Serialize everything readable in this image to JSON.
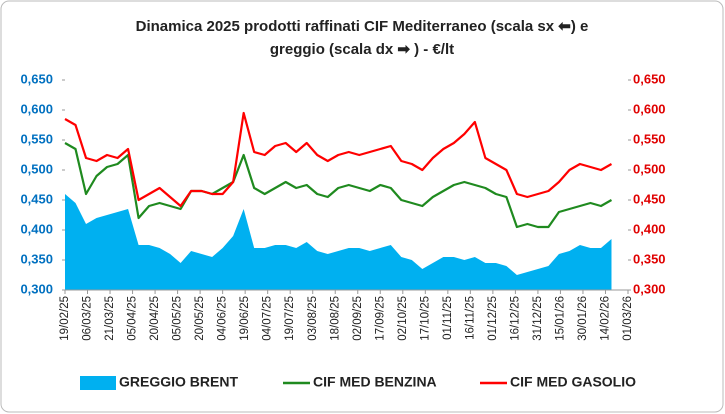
{
  "chart_data": {
    "type": "line",
    "title": [
      "Dinamica 2025 prodotti raffinati CIF Mediterraneo (scala sx ⬅) e",
      "greggio (scala dx ➡ ) - €/lt"
    ],
    "x": [
      "19/02/25",
      "26/02/25",
      "05/03/25",
      "12/03/25",
      "19/03/25",
      "26/03/25",
      "02/04/25",
      "09/04/25",
      "16/04/25",
      "23/04/25",
      "30/04/25",
      "07/05/25",
      "14/05/25",
      "21/05/25",
      "28/05/25",
      "04/06/25",
      "11/06/25",
      "18/06/25",
      "25/06/25",
      "02/07/25",
      "09/07/25",
      "16/07/25",
      "23/07/25",
      "30/07/25",
      "06/08/25",
      "13/08/25",
      "20/08/25",
      "27/08/25",
      "03/09/25",
      "10/09/25",
      "17/09/25",
      "24/09/25",
      "01/10/25",
      "08/10/25",
      "15/10/25",
      "22/10/25",
      "29/10/25",
      "05/11/25",
      "12/11/25",
      "19/11/25",
      "26/11/25",
      "03/12/25",
      "10/12/25",
      "17/12/25",
      "24/12/25",
      "31/12/25",
      "07/01/26",
      "14/01/26",
      "21/01/26",
      "28/01/26",
      "04/02/26",
      "11/02/26",
      "18/02/26"
    ],
    "series": [
      {
        "name": "GREGGIO BRENT",
        "type": "area",
        "axis": "y2",
        "color": "#00b0f0",
        "values": [
          0.46,
          0.445,
          0.41,
          0.42,
          0.425,
          0.43,
          0.435,
          0.375,
          0.375,
          0.37,
          0.36,
          0.345,
          0.365,
          0.36,
          0.355,
          0.37,
          0.39,
          0.435,
          0.37,
          0.37,
          0.375,
          0.375,
          0.37,
          0.38,
          0.365,
          0.36,
          0.365,
          0.37,
          0.37,
          0.365,
          0.37,
          0.375,
          0.355,
          0.35,
          0.335,
          0.345,
          0.355,
          0.355,
          0.35,
          0.355,
          0.345,
          0.345,
          0.34,
          0.325,
          0.33,
          0.335,
          0.34,
          0.36,
          0.365,
          0.375,
          0.37,
          0.37,
          0.385
        ]
      },
      {
        "name": "CIF MED BENZINA",
        "type": "line",
        "color": "#1f8a1f",
        "values": [
          0.545,
          0.535,
          0.46,
          0.49,
          0.505,
          0.51,
          0.525,
          0.42,
          0.44,
          0.445,
          0.44,
          0.435,
          0.465,
          0.465,
          0.46,
          0.47,
          0.48,
          0.525,
          0.47,
          0.46,
          0.47,
          0.48,
          0.47,
          0.475,
          0.46,
          0.455,
          0.47,
          0.475,
          0.47,
          0.465,
          0.475,
          0.47,
          0.45,
          0.445,
          0.44,
          0.455,
          0.465,
          0.475,
          0.48,
          0.475,
          0.47,
          0.46,
          0.455,
          0.405,
          0.41,
          0.405,
          0.405,
          0.43,
          0.435,
          0.44,
          0.445,
          0.44,
          0.45
        ]
      },
      {
        "name": "CIF MED GASOLIO",
        "type": "line",
        "color": "#ff0000",
        "values": [
          0.585,
          0.575,
          0.52,
          0.515,
          0.525,
          0.52,
          0.535,
          0.45,
          0.46,
          0.47,
          0.455,
          0.44,
          0.465,
          0.465,
          0.46,
          0.46,
          0.48,
          0.595,
          0.53,
          0.525,
          0.54,
          0.545,
          0.53,
          0.545,
          0.525,
          0.515,
          0.525,
          0.53,
          0.525,
          0.53,
          0.535,
          0.54,
          0.515,
          0.51,
          0.5,
          0.52,
          0.535,
          0.545,
          0.56,
          0.58,
          0.52,
          0.51,
          0.5,
          0.46,
          0.455,
          0.46,
          0.465,
          0.48,
          0.5,
          0.51,
          0.505,
          0.5,
          0.51
        ]
      }
    ],
    "xlim": [
      "19/02/25",
      "01/03/26"
    ],
    "xticks": [
      "19/02/25",
      "06/03/25",
      "21/03/25",
      "05/04/25",
      "20/04/25",
      "05/05/25",
      "20/05/25",
      "04/06/25",
      "19/06/25",
      "04/07/25",
      "19/07/25",
      "03/08/25",
      "18/08/25",
      "02/09/25",
      "17/09/25",
      "02/10/25",
      "17/10/25",
      "01/11/25",
      "16/11/25",
      "01/12/25",
      "16/12/25",
      "31/12/25",
      "15/01/26",
      "30/01/26",
      "14/02/26",
      "01/03/26"
    ],
    "ylim": [
      0.3,
      0.65
    ],
    "yticks": [
      {
        "value": 0.3,
        "label": "0,300"
      },
      {
        "value": 0.35,
        "label": "0,350"
      },
      {
        "value": 0.4,
        "label": "0,400"
      },
      {
        "value": 0.45,
        "label": "0,450"
      },
      {
        "value": 0.5,
        "label": "0,500"
      },
      {
        "value": 0.55,
        "label": "0,550"
      },
      {
        "value": 0.6,
        "label": "0,600"
      },
      {
        "value": 0.65,
        "label": "0,650"
      }
    ],
    "y2lim": [
      0.3,
      0.65
    ],
    "y2ticks": [
      {
        "value": 0.3,
        "label": "0,300"
      },
      {
        "value": 0.35,
        "label": "0,350"
      },
      {
        "value": 0.4,
        "label": "0,400"
      },
      {
        "value": 0.45,
        "label": "0,450"
      },
      {
        "value": 0.5,
        "label": "0,500"
      },
      {
        "value": 0.55,
        "label": "0,550"
      },
      {
        "value": 0.6,
        "label": "0,600"
      },
      {
        "value": 0.65,
        "label": "0,650"
      }
    ],
    "grid": false,
    "legend": "bottom"
  }
}
